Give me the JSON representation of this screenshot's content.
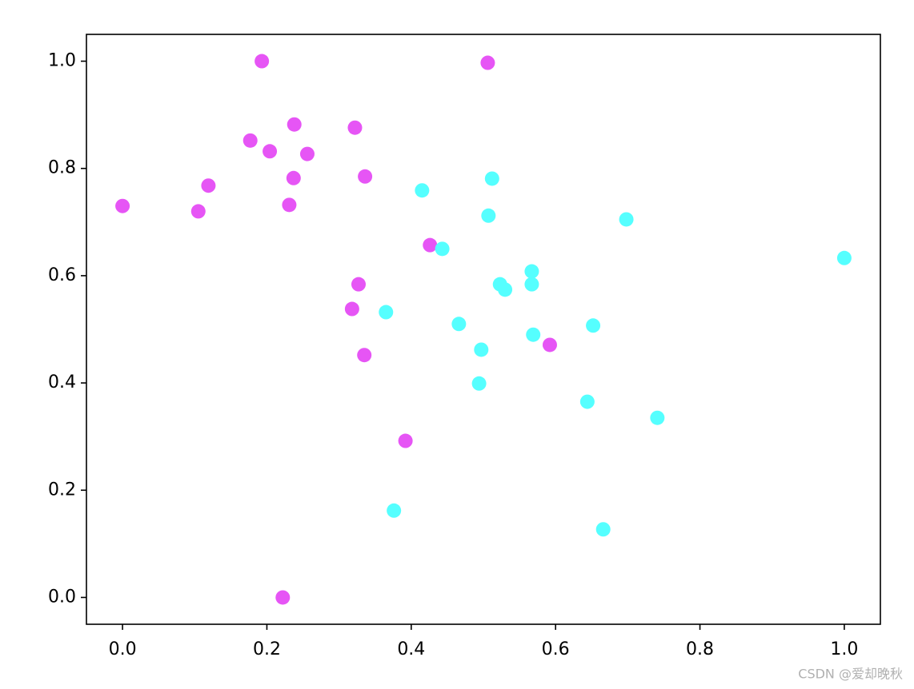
{
  "chart_data": {
    "type": "scatter",
    "series": [
      {
        "color": "#e655f5",
        "x": [
          0.0,
          0.193,
          0.506,
          0.177,
          0.204,
          0.238,
          0.256,
          0.322,
          0.119,
          0.105,
          0.237,
          0.231,
          0.336,
          0.426,
          0.327,
          0.318,
          0.335,
          0.392,
          0.592,
          0.222
        ],
        "values": [
          0.73,
          1.0,
          0.997,
          0.852,
          0.832,
          0.882,
          0.827,
          0.876,
          0.768,
          0.72,
          0.782,
          0.732,
          0.785,
          0.657,
          0.584,
          0.538,
          0.452,
          0.292,
          0.471,
          0.0
        ]
      },
      {
        "color": "#55ffff",
        "x": [
          0.415,
          0.512,
          0.507,
          0.698,
          1.0,
          0.443,
          0.567,
          0.567,
          0.523,
          0.53,
          0.365,
          0.466,
          0.652,
          0.569,
          0.497,
          0.494,
          0.644,
          0.741,
          0.376,
          0.666
        ],
        "values": [
          0.759,
          0.781,
          0.712,
          0.705,
          0.633,
          0.65,
          0.608,
          0.584,
          0.584,
          0.574,
          0.532,
          0.51,
          0.507,
          0.49,
          0.462,
          0.399,
          0.365,
          0.335,
          0.162,
          0.127
        ]
      }
    ],
    "xlim": [
      -0.05,
      1.05
    ],
    "ylim": [
      -0.05,
      1.05
    ],
    "xticks": [
      {
        "value": 0,
        "label": "0.0"
      },
      0.2,
      0.4,
      0.6,
      0.8,
      {
        "value": 1,
        "label": "1.0"
      }
    ],
    "yticks": [
      {
        "value": 0,
        "label": "0.0"
      },
      0.2,
      0.4,
      0.6,
      0.8,
      {
        "value": 1,
        "label": "1.0"
      }
    ],
    "grid": false,
    "watermark": "CSDN @爱却晚秋"
  }
}
